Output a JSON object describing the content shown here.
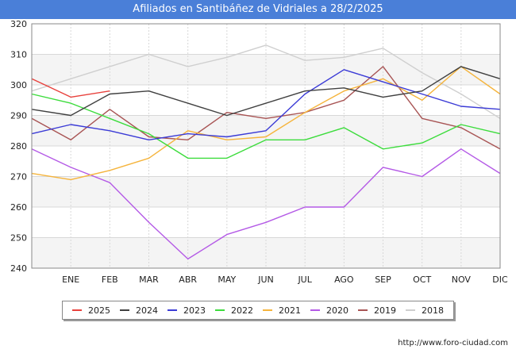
{
  "title": "Afiliados en Santibáñez de Vidriales a 28/2/2025",
  "footer": "http://www.foro-ciudad.com",
  "chart_data": {
    "type": "line",
    "title": "Afiliados en Santibáñez de Vidriales a 28/2/2025",
    "xlabel": "",
    "ylabel": "",
    "categories": [
      "",
      "ENE",
      "FEB",
      "MAR",
      "ABR",
      "MAY",
      "JUN",
      "JUL",
      "AGO",
      "SEP",
      "OCT",
      "NOV",
      "DIC"
    ],
    "ylim": [
      240,
      320
    ],
    "yticks": [
      240,
      250,
      260,
      270,
      280,
      290,
      300,
      310,
      320
    ],
    "grid": true,
    "legend_position": "bottom",
    "series": [
      {
        "name": "2025",
        "color": "#e8413c",
        "values": [
          302,
          296,
          298,
          null,
          null,
          null,
          null,
          null,
          null,
          null,
          null,
          null,
          null
        ]
      },
      {
        "name": "2024",
        "color": "#404040",
        "values": [
          292,
          290,
          297,
          298,
          294,
          290,
          294,
          298,
          299,
          296,
          298,
          306,
          302
        ]
      },
      {
        "name": "2023",
        "color": "#3b3bd6",
        "values": [
          284,
          287,
          285,
          282,
          284,
          283,
          285,
          297,
          305,
          301,
          297,
          293,
          292
        ]
      },
      {
        "name": "2022",
        "color": "#3cdc3c",
        "values": [
          297,
          294,
          289,
          284,
          276,
          276,
          282,
          282,
          286,
          279,
          281,
          287,
          284
        ]
      },
      {
        "name": "2021",
        "color": "#f5b43c",
        "values": [
          271,
          269,
          272,
          276,
          285,
          282,
          283,
          291,
          298,
          302,
          295,
          306,
          297
        ]
      },
      {
        "name": "2020",
        "color": "#b45ae6",
        "values": [
          279,
          273,
          268,
          255,
          243,
          251,
          255,
          260,
          260,
          273,
          270,
          279,
          271
        ]
      },
      {
        "name": "2019",
        "color": "#a85454",
        "values": [
          289,
          282,
          292,
          283,
          282,
          291,
          289,
          291,
          295,
          306,
          289,
          286,
          279
        ]
      },
      {
        "name": "2018",
        "color": "#cfcfcf",
        "values": [
          298,
          302,
          306,
          310,
          306,
          309,
          313,
          308,
          309,
          312,
          304,
          297,
          289
        ]
      }
    ]
  }
}
